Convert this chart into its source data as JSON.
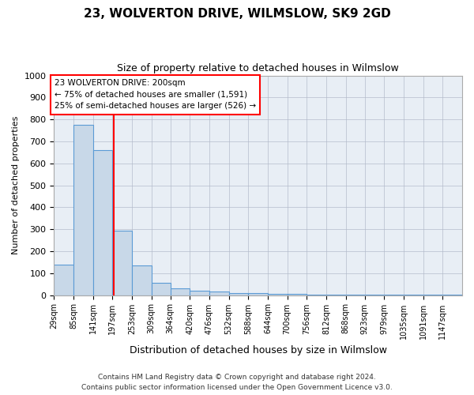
{
  "title": "23, WOLVERTON DRIVE, WILMSLOW, SK9 2GD",
  "subtitle": "Size of property relative to detached houses in Wilmslow",
  "xlabel": "Distribution of detached houses by size in Wilmslow",
  "ylabel": "Number of detached properties",
  "bin_labels": [
    "29sqm",
    "85sqm",
    "141sqm",
    "197sqm",
    "253sqm",
    "309sqm",
    "364sqm",
    "420sqm",
    "476sqm",
    "532sqm",
    "588sqm",
    "644sqm",
    "700sqm",
    "756sqm",
    "812sqm",
    "868sqm",
    "923sqm",
    "979sqm",
    "1035sqm",
    "1091sqm",
    "1147sqm"
  ],
  "bar_heights": [
    140,
    775,
    660,
    295,
    135,
    55,
    30,
    20,
    15,
    10,
    8,
    5,
    5,
    3,
    3,
    3,
    2,
    2,
    2,
    1,
    1
  ],
  "bin_edges": [
    29,
    85,
    141,
    197,
    253,
    309,
    364,
    420,
    476,
    532,
    588,
    644,
    700,
    756,
    812,
    868,
    923,
    979,
    1035,
    1091,
    1147,
    1203
  ],
  "bar_color": "#c8d8e8",
  "bar_edgecolor": "#5b9bd5",
  "red_line_x": 200,
  "ylim": [
    0,
    1000
  ],
  "yticks": [
    0,
    100,
    200,
    300,
    400,
    500,
    600,
    700,
    800,
    900,
    1000
  ],
  "annotation_title": "23 WOLVERTON DRIVE: 200sqm",
  "annotation_line1": "← 75% of detached houses are smaller (1,591)",
  "annotation_line2": "25% of semi-detached houses are larger (526) →",
  "footer_line1": "Contains HM Land Registry data © Crown copyright and database right 2024.",
  "footer_line2": "Contains public sector information licensed under the Open Government Licence v3.0.",
  "background_color": "#ffffff",
  "plot_bg_color": "#e8eef5"
}
